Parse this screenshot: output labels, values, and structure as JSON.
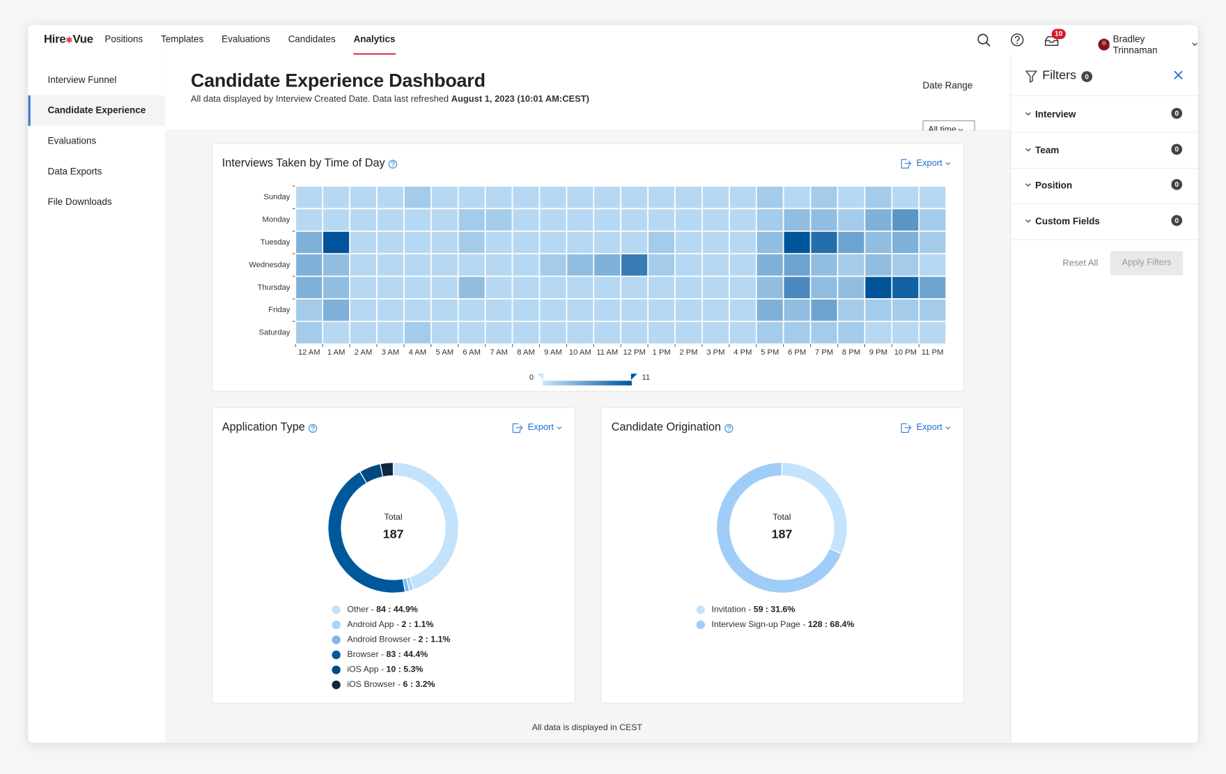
{
  "nav": {
    "logo": {
      "left": "Hire",
      "right": "Vue"
    },
    "items": [
      "Positions",
      "Templates",
      "Evaluations",
      "Candidates",
      "Analytics"
    ],
    "active": 4,
    "notification_count": 10,
    "user": "Bradley Trinnaman"
  },
  "sidebar": {
    "items": [
      "Interview Funnel",
      "Candidate Experience",
      "Evaluations",
      "Data Exports",
      "File Downloads"
    ],
    "active": 1
  },
  "header": {
    "title": "Candidate Experience Dashboard",
    "subtitle": "All data displayed by Interview Created Date. Data last refreshed ",
    "refreshed": "August 1, 2023 (10:01 AM:CEST)",
    "date_range_label": "Date Range",
    "date_range_value": "All time"
  },
  "export_label": "Export",
  "chart_data": [
    {
      "type": "heatmap",
      "title": "Interviews Taken by Time of Day",
      "rows": [
        "Sunday",
        "Monday",
        "Tuesday",
        "Wednesday",
        "Thursday",
        "Friday",
        "Saturday"
      ],
      "columns": [
        "12 AM",
        "1 AM",
        "2 AM",
        "3 AM",
        "4 AM",
        "5 AM",
        "6 AM",
        "7 AM",
        "8 AM",
        "9 AM",
        "10 AM",
        "11 AM",
        "12 PM",
        "1 PM",
        "2 PM",
        "3 PM",
        "4 PM",
        "5 PM",
        "6 PM",
        "7 PM",
        "8 PM",
        "9 PM",
        "10 PM",
        "11 PM"
      ],
      "values": [
        [
          1,
          1,
          1,
          1,
          2,
          1,
          1,
          1,
          1,
          1,
          1,
          1,
          1,
          1,
          1,
          1,
          1,
          2,
          1,
          2,
          1,
          2,
          1,
          1
        ],
        [
          1,
          1,
          1,
          1,
          1,
          1,
          2,
          2,
          1,
          1,
          1,
          1,
          1,
          1,
          1,
          1,
          1,
          2,
          3,
          3,
          2,
          4,
          6,
          2
        ],
        [
          4,
          11,
          1,
          1,
          1,
          1,
          2,
          1,
          1,
          1,
          1,
          1,
          1,
          2,
          1,
          1,
          1,
          3,
          11,
          9,
          5,
          3,
          4,
          2
        ],
        [
          4,
          3,
          1,
          1,
          1,
          1,
          1,
          1,
          1,
          2,
          3,
          4,
          8,
          2,
          1,
          1,
          1,
          4,
          5,
          3,
          2,
          3,
          2,
          1
        ],
        [
          4,
          3,
          1,
          1,
          1,
          1,
          3,
          1,
          1,
          1,
          1,
          1,
          1,
          1,
          1,
          1,
          1,
          3,
          7,
          3,
          3,
          11,
          10,
          5
        ],
        [
          2,
          4,
          1,
          1,
          1,
          1,
          1,
          1,
          1,
          1,
          1,
          1,
          1,
          1,
          1,
          1,
          1,
          4,
          3,
          5,
          2,
          2,
          2,
          2
        ],
        [
          2,
          1,
          1,
          1,
          2,
          1,
          1,
          1,
          1,
          1,
          1,
          1,
          1,
          1,
          1,
          1,
          1,
          2,
          2,
          2,
          2,
          1,
          1,
          1
        ]
      ],
      "scale": [
        0,
        11
      ],
      "color_range": [
        "#c8e5fc",
        "#00549a"
      ]
    },
    {
      "type": "pie",
      "title": "Application Type",
      "total_label": "Total",
      "total": 187,
      "separator": " - ",
      "categories": [
        "Other",
        "Android App",
        "Android Browser",
        "Browser",
        "iOS App",
        "iOS Browser"
      ],
      "values": [
        84,
        2,
        2,
        83,
        10,
        6
      ],
      "value_labels": [
        "84 : 44.9%",
        "2 : 1.1%",
        "2 : 1.1%",
        "83 : 44.4%",
        "10 : 5.3%",
        "6 : 3.2%"
      ],
      "colors": [
        "#c3e2fb",
        "#a9d3f7",
        "#7db7ee",
        "#00589c",
        "#004a80",
        "#0f2640"
      ]
    },
    {
      "type": "pie",
      "title": "Candidate Origination",
      "total_label": "Total",
      "total": 187,
      "separator": " - ",
      "categories": [
        "Invitation",
        "Interview Sign-up Page"
      ],
      "values": [
        59,
        128
      ],
      "value_labels": [
        "59 : 31.6%",
        "128 : 68.4%"
      ],
      "colors": [
        "#c5e3fb",
        "#9fcdf7"
      ]
    }
  ],
  "footer": "All data is displayed in CEST",
  "filters": {
    "title": "Filters",
    "count": 0,
    "items": [
      {
        "name": "Interview",
        "count": 0
      },
      {
        "name": "Team",
        "count": 0
      },
      {
        "name": "Position",
        "count": 0
      },
      {
        "name": "Custom Fields",
        "count": 0
      }
    ],
    "reset": "Reset All",
    "apply": "Apply Filters"
  }
}
